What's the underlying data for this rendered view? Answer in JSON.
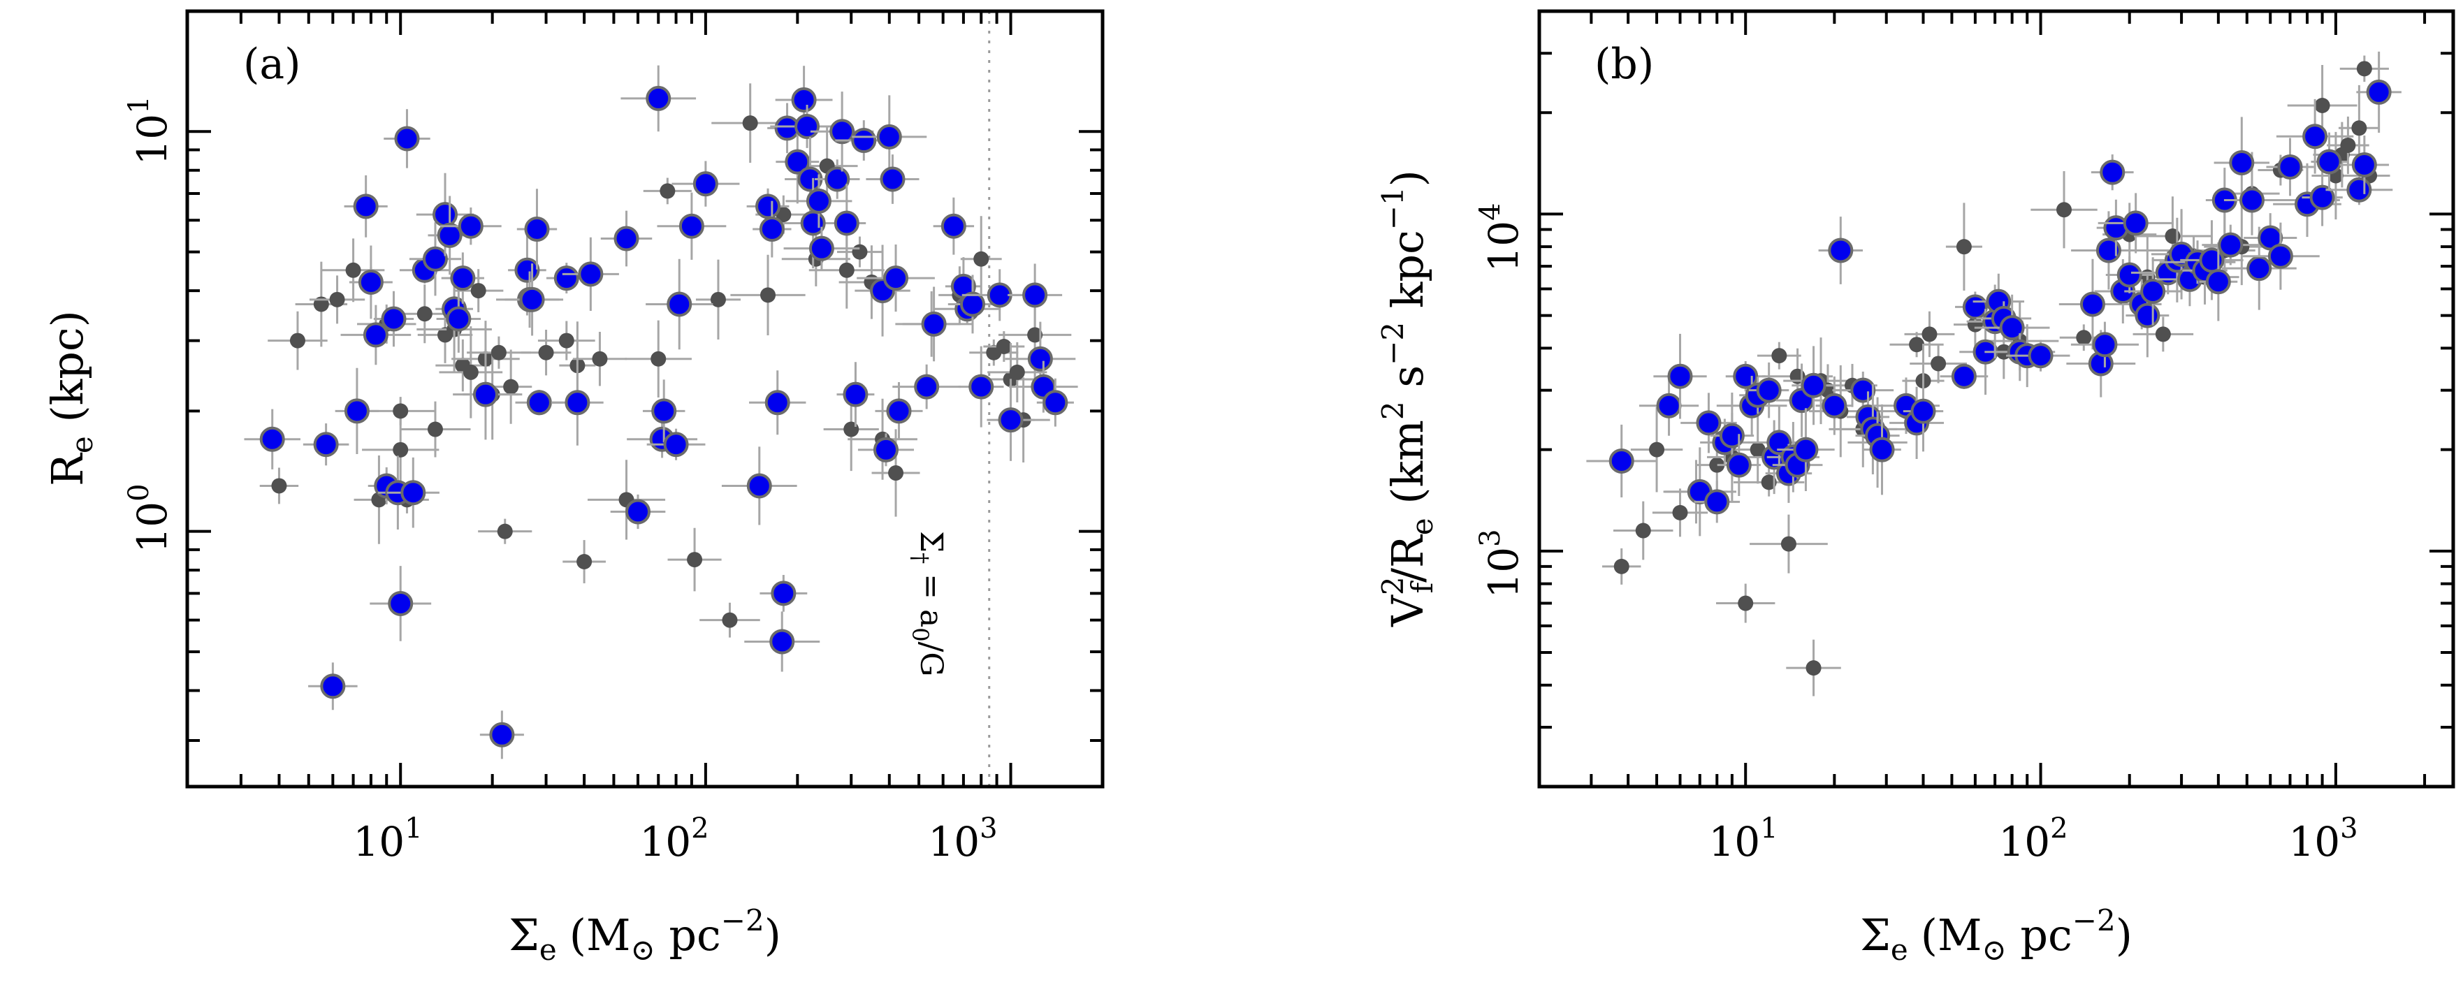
{
  "chart_data": [
    {
      "id": "a",
      "type": "scatter",
      "panel_label": "(a)",
      "xlabel": "Σ",
      "xlabel_sub": "e",
      "xlabel_paren": "(M",
      "xlabel_sun": "⊙",
      "xlabel_unit": " pc",
      "xlabel_sup": "−2",
      "xlabel_close": ")",
      "ylabel": "R",
      "ylabel_sub": "e",
      "ylabel_unit": " (kpc)",
      "xscale": "log",
      "yscale": "log",
      "xlim": [
        2,
        2000
      ],
      "ylim": [
        0.23,
        20
      ],
      "x_ticks": [
        {
          "base": "10",
          "exp": "1"
        },
        {
          "base": "10",
          "exp": "2"
        },
        {
          "base": "10",
          "exp": "3"
        }
      ],
      "y_ticks": [
        {
          "base": "10",
          "exp": "0"
        },
        {
          "base": "10",
          "exp": "1"
        }
      ],
      "vline": {
        "x": 850,
        "style": "dotted",
        "label_main": "Σ",
        "label_sub": "†",
        "label_eq": " = a",
        "label_sub2": "0",
        "label_tail": "/G"
      },
      "series": [
        {
          "name": "grey",
          "color": "#505050",
          "points": [
            [
              4.0,
              1.3
            ],
            [
              4.6,
              3.0
            ],
            [
              5.5,
              3.7
            ],
            [
              6.2,
              3.8
            ],
            [
              7.0,
              4.5
            ],
            [
              8.0,
              4.2
            ],
            [
              8.5,
              1.2
            ],
            [
              9.0,
              3.3
            ],
            [
              10,
              1.6
            ],
            [
              10,
              2.0
            ],
            [
              10.5,
              1.2
            ],
            [
              12,
              3.5
            ],
            [
              13,
              1.8
            ],
            [
              14,
              3.1
            ],
            [
              15,
              3.2
            ],
            [
              16,
              2.6
            ],
            [
              17,
              2.5
            ],
            [
              18,
              4.0
            ],
            [
              19,
              2.7
            ],
            [
              20,
              2.2
            ],
            [
              21,
              2.8
            ],
            [
              22,
              1.0
            ],
            [
              23,
              2.3
            ],
            [
              30,
              2.8
            ],
            [
              35,
              3.0
            ],
            [
              38,
              2.6
            ],
            [
              40,
              0.84
            ],
            [
              45,
              2.7
            ],
            [
              55,
              1.2
            ],
            [
              70,
              2.7
            ],
            [
              75,
              7.1
            ],
            [
              92,
              0.85
            ],
            [
              110,
              3.8
            ],
            [
              120,
              0.6
            ],
            [
              140,
              10.5
            ],
            [
              160,
              3.9
            ],
            [
              180,
              6.2
            ],
            [
              230,
              4.8
            ],
            [
              250,
              8.2
            ],
            [
              290,
              4.5
            ],
            [
              300,
              1.8
            ],
            [
              320,
              5.0
            ],
            [
              350,
              4.2
            ],
            [
              380,
              1.7
            ],
            [
              420,
              1.4
            ],
            [
              550,
              3.3
            ],
            [
              680,
              3.9
            ],
            [
              800,
              4.8
            ],
            [
              880,
              2.8
            ],
            [
              950,
              2.9
            ],
            [
              1000,
              2.4
            ],
            [
              1050,
              2.5
            ],
            [
              1100,
              1.9
            ],
            [
              1200,
              3.1
            ]
          ]
        },
        {
          "name": "blue",
          "color": "#0000ee",
          "points": [
            [
              3.8,
              1.7
            ],
            [
              5.7,
              1.65
            ],
            [
              6.0,
              0.41
            ],
            [
              7.2,
              2.0
            ],
            [
              7.7,
              6.5
            ],
            [
              8.0,
              4.2
            ],
            [
              8.3,
              3.1
            ],
            [
              9.0,
              1.3
            ],
            [
              9.5,
              3.4
            ],
            [
              9.8,
              1.25
            ],
            [
              10,
              0.66
            ],
            [
              10.5,
              9.6
            ],
            [
              11,
              1.25
            ],
            [
              12,
              4.5
            ],
            [
              13,
              4.8
            ],
            [
              14,
              6.2
            ],
            [
              14.5,
              5.5
            ],
            [
              15,
              3.6
            ],
            [
              15.5,
              3.4
            ],
            [
              17,
              5.8
            ],
            [
              16,
              4.3
            ],
            [
              19,
              2.2
            ],
            [
              21.5,
              0.31
            ],
            [
              26,
              4.5
            ],
            [
              26.5,
              3.8
            ],
            [
              27,
              3.8
            ],
            [
              28,
              5.7
            ],
            [
              28.5,
              2.1
            ],
            [
              35,
              4.3
            ],
            [
              38,
              2.1
            ],
            [
              42,
              4.4
            ],
            [
              55,
              5.4
            ],
            [
              60,
              1.12
            ],
            [
              70,
              12.1
            ],
            [
              72,
              1.7
            ],
            [
              73,
              2.0
            ],
            [
              80,
              1.65
            ],
            [
              82,
              3.7
            ],
            [
              90,
              5.8
            ],
            [
              100,
              7.4
            ],
            [
              150,
              1.3
            ],
            [
              160,
              6.5
            ],
            [
              165,
              5.7
            ],
            [
              172,
              2.1
            ],
            [
              180,
              0.7
            ],
            [
              178,
              0.53
            ],
            [
              185,
              10.2
            ],
            [
              200,
              8.4
            ],
            [
              210,
              12.0
            ],
            [
              215,
              10.3
            ],
            [
              220,
              7.6
            ],
            [
              225,
              5.9
            ],
            [
              235,
              6.7
            ],
            [
              240,
              5.1
            ],
            [
              270,
              7.6
            ],
            [
              280,
              10.0
            ],
            [
              290,
              5.9
            ],
            [
              310,
              2.2
            ],
            [
              330,
              9.5
            ],
            [
              380,
              4.0
            ],
            [
              390,
              1.6
            ],
            [
              400,
              9.7
            ],
            [
              410,
              7.6
            ],
            [
              420,
              4.3
            ],
            [
              430,
              2.0
            ],
            [
              530,
              2.3
            ],
            [
              560,
              3.3
            ],
            [
              650,
              5.8
            ],
            [
              700,
              4.1
            ],
            [
              720,
              3.6
            ],
            [
              750,
              3.7
            ],
            [
              800,
              2.3
            ],
            [
              920,
              3.9
            ],
            [
              1000,
              1.9
            ],
            [
              1200,
              3.9
            ],
            [
              1250,
              2.7
            ],
            [
              1280,
              2.3
            ],
            [
              1400,
              2.1
            ]
          ]
        }
      ]
    },
    {
      "id": "b",
      "type": "scatter",
      "panel_label": "(b)",
      "xlabel": "Σ",
      "xlabel_sub": "e",
      "xlabel_paren": "(M",
      "xlabel_sun": "⊙",
      "xlabel_unit": " pc",
      "xlabel_sup": "−2",
      "xlabel_close": ")",
      "ylabel": "V",
      "ylabel_sup1": "2",
      "ylabel_sub1": "f",
      "ylabel_mid": "/R",
      "ylabel_sub2": "e",
      "ylabel_paren": " (km",
      "ylabel_sup2": "2",
      "ylabel_s": " s",
      "ylabel_sup3": "−2",
      "ylabel_kpc": " kpc",
      "ylabel_sup4": "−1",
      "ylabel_close": ")",
      "xscale": "log",
      "yscale": "log",
      "xlim": [
        2,
        2500
      ],
      "ylim": [
        200,
        40000
      ],
      "x_ticks": [
        {
          "base": "10",
          "exp": "1"
        },
        {
          "base": "10",
          "exp": "2"
        },
        {
          "base": "10",
          "exp": "3"
        }
      ],
      "y_ticks": [
        {
          "base": "10",
          "exp": "3"
        },
        {
          "base": "10",
          "exp": "4"
        }
      ],
      "series": [
        {
          "name": "grey",
          "color": "#505050",
          "points": [
            [
              3.8,
              900
            ],
            [
              4.5,
              1150
            ],
            [
              5.0,
              2000
            ],
            [
              6.0,
              1300
            ],
            [
              6.8,
              1500
            ],
            [
              8.0,
              1800
            ],
            [
              9.0,
              1900
            ],
            [
              10,
              700
            ],
            [
              11,
              2000
            ],
            [
              12,
              1600
            ],
            [
              13,
              3800
            ],
            [
              14,
              1050
            ],
            [
              15,
              3300
            ],
            [
              17,
              450
            ],
            [
              18,
              3200
            ],
            [
              19,
              3000
            ],
            [
              21,
              2600
            ],
            [
              23,
              3100
            ],
            [
              25,
              2300
            ],
            [
              28,
              2100
            ],
            [
              35,
              2600
            ],
            [
              38,
              4100
            ],
            [
              40,
              3200
            ],
            [
              42,
              4400
            ],
            [
              45,
              3600
            ],
            [
              55,
              8000
            ],
            [
              60,
              4700
            ],
            [
              75,
              3900
            ],
            [
              85,
              4200
            ],
            [
              120,
              10300
            ],
            [
              140,
              4300
            ],
            [
              200,
              8700
            ],
            [
              230,
              6500
            ],
            [
              260,
              4400
            ],
            [
              280,
              8600
            ],
            [
              300,
              7800
            ],
            [
              330,
              7500
            ],
            [
              360,
              6500
            ],
            [
              420,
              7800
            ],
            [
              480,
              8000
            ],
            [
              520,
              11500
            ],
            [
              650,
              13500
            ],
            [
              800,
              11000
            ],
            [
              900,
              21000
            ],
            [
              1000,
              13000
            ],
            [
              1050,
              15000
            ],
            [
              1100,
              16000
            ],
            [
              1200,
              18000
            ],
            [
              1250,
              27000
            ],
            [
              1300,
              13000
            ]
          ]
        },
        {
          "name": "blue",
          "color": "#0000ee",
          "points": [
            [
              3.8,
              1850
            ],
            [
              5.5,
              2700
            ],
            [
              6.0,
              3300
            ],
            [
              7.0,
              1500
            ],
            [
              7.5,
              2400
            ],
            [
              8.0,
              1400
            ],
            [
              8.5,
              2100
            ],
            [
              9.0,
              2200
            ],
            [
              9.5,
              1800
            ],
            [
              10,
              3300
            ],
            [
              10.5,
              2700
            ],
            [
              11,
              2900
            ],
            [
              12,
              3000
            ],
            [
              12.5,
              1900
            ],
            [
              13,
              2100
            ],
            [
              14,
              1700
            ],
            [
              14.5,
              1900
            ],
            [
              15,
              1800
            ],
            [
              15.5,
              2800
            ],
            [
              16,
              2000
            ],
            [
              17,
              3100
            ],
            [
              20,
              2700
            ],
            [
              21,
              7800
            ],
            [
              25,
              3000
            ],
            [
              26,
              2500
            ],
            [
              27,
              2300
            ],
            [
              28,
              2200
            ],
            [
              29,
              2000
            ],
            [
              35,
              2700
            ],
            [
              38,
              2400
            ],
            [
              40,
              2600
            ],
            [
              55,
              3300
            ],
            [
              60,
              5300
            ],
            [
              65,
              3900
            ],
            [
              70,
              4800
            ],
            [
              72,
              5500
            ],
            [
              75,
              4900
            ],
            [
              80,
              4600
            ],
            [
              85,
              3900
            ],
            [
              90,
              3800
            ],
            [
              100,
              3800
            ],
            [
              150,
              5400
            ],
            [
              160,
              3600
            ],
            [
              165,
              4100
            ],
            [
              170,
              7800
            ],
            [
              175,
              13300
            ],
            [
              180,
              9100
            ],
            [
              190,
              5900
            ],
            [
              200,
              6600
            ],
            [
              210,
              9400
            ],
            [
              220,
              5400
            ],
            [
              230,
              5000
            ],
            [
              240,
              5900
            ],
            [
              270,
              6700
            ],
            [
              290,
              7300
            ],
            [
              300,
              7600
            ],
            [
              320,
              6400
            ],
            [
              340,
              7200
            ],
            [
              360,
              6800
            ],
            [
              380,
              7300
            ],
            [
              400,
              6300
            ],
            [
              420,
              11000
            ],
            [
              440,
              8100
            ],
            [
              480,
              14200
            ],
            [
              520,
              11000
            ],
            [
              550,
              6900
            ],
            [
              600,
              8500
            ],
            [
              650,
              7500
            ],
            [
              700,
              13800
            ],
            [
              800,
              10700
            ],
            [
              850,
              17000
            ],
            [
              900,
              11200
            ],
            [
              950,
              14300
            ],
            [
              1200,
              11800
            ],
            [
              1250,
              14000
            ],
            [
              1400,
              23000
            ]
          ]
        }
      ]
    }
  ]
}
